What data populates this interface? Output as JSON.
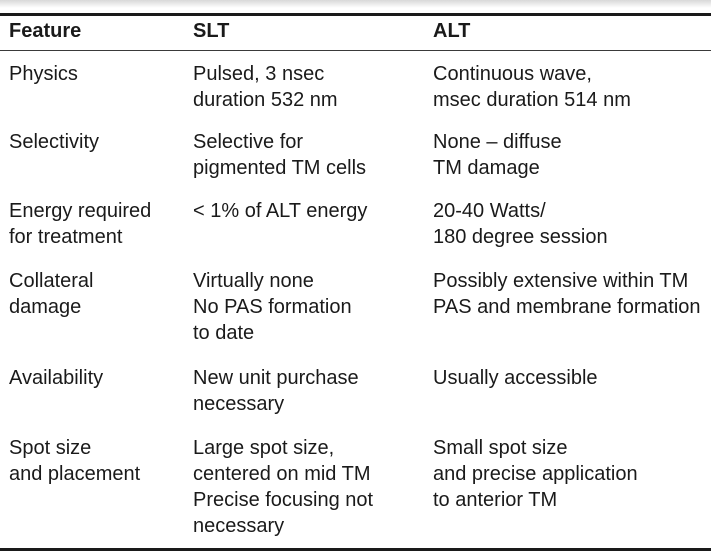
{
  "table": {
    "headers": [
      "Feature",
      "SLT",
      "ALT"
    ],
    "rows": [
      {
        "feature": "Physics",
        "slt": "Pulsed, 3 nsec\nduration 532 nm",
        "alt": "Continuous wave,\nmsec duration 514 nm"
      },
      {
        "feature": "Selectivity",
        "slt": "Selective for\npigmented TM cells",
        "alt": "None – diffuse\nTM damage"
      },
      {
        "feature": "Energy required\nfor treatment",
        "slt": "< 1% of ALT energy",
        "alt": "20-40 Watts/\n180 degree session"
      },
      {
        "feature": "Collateral\ndamage",
        "slt": "Virtually none\nNo PAS formation\nto date",
        "alt": "Possibly extensive within TM\nPAS and membrane formation"
      },
      {
        "feature": "Availability",
        "slt": "New unit purchase\nnecessary",
        "alt": "Usually accessible"
      },
      {
        "feature": "Spot size\nand placement",
        "slt": "Large spot size,\ncentered on mid TM\nPrecise focusing not\nnecessary",
        "alt": "Small spot size\nand precise application\nto anterior TM"
      }
    ]
  }
}
